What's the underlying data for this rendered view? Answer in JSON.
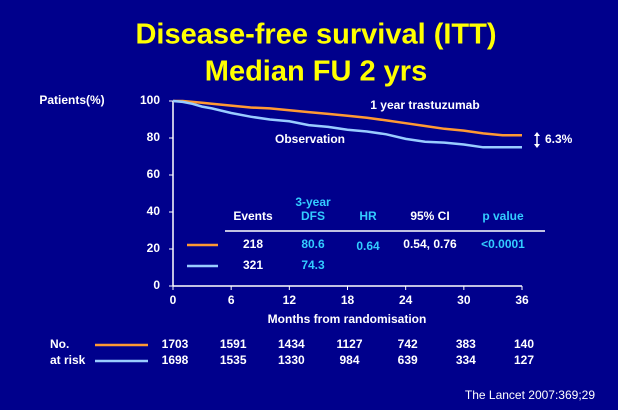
{
  "chart_data": {
    "type": "line",
    "title": "Disease-free survival (ITT)",
    "subtitle": "Median FU 2 yrs",
    "y_label": "Patients(%)",
    "x_label": "Months from randomisation",
    "xlim": [
      0,
      36
    ],
    "xticks": [
      0,
      6,
      12,
      18,
      24,
      30,
      36
    ],
    "ylim": [
      0,
      100
    ],
    "yticks": [
      0,
      20,
      40,
      60,
      80,
      100
    ],
    "series": [
      {
        "name": "1 year trastuzumab",
        "color": "#ff9933",
        "x": [
          0,
          1,
          2,
          3,
          4,
          6,
          8,
          10,
          12,
          14,
          16,
          18,
          20,
          22,
          24,
          26,
          28,
          30,
          32,
          34,
          36
        ],
        "values": [
          100,
          100,
          99.5,
          99,
          98.5,
          97.5,
          96.5,
          96,
          95,
          94,
          93,
          92,
          91,
          89.5,
          88,
          86.5,
          85,
          84,
          82.5,
          81.5,
          81.5
        ]
      },
      {
        "name": "Observation",
        "color": "#99ccff",
        "x": [
          0,
          1,
          2,
          3,
          4,
          6,
          8,
          10,
          12,
          14,
          16,
          18,
          20,
          22,
          24,
          26,
          28,
          30,
          32,
          34,
          36
        ],
        "values": [
          100,
          99.5,
          98.5,
          97,
          96,
          93.5,
          91.5,
          90,
          89,
          87,
          86,
          84.5,
          83.5,
          82,
          79.5,
          78,
          77.5,
          76.5,
          75,
          75,
          75
        ]
      }
    ],
    "difference_label": "6.3%",
    "table": {
      "headers": [
        [
          "Events"
        ],
        [
          "3-year",
          "DFS"
        ],
        [
          "HR"
        ],
        [
          "95% CI"
        ],
        [
          "p value"
        ]
      ],
      "rows": [
        [
          218,
          80.6,
          0.64,
          "0.54, 0.76",
          "<0.0001"
        ],
        [
          321,
          74.3
        ]
      ]
    },
    "at_risk": {
      "label": [
        "No.",
        "at risk"
      ],
      "rows": [
        [
          1703,
          1591,
          1434,
          1127,
          742,
          383,
          140
        ],
        [
          1698,
          1535,
          1330,
          984,
          639,
          334,
          127
        ]
      ]
    },
    "source": "The Lancet 2007:369;29"
  }
}
